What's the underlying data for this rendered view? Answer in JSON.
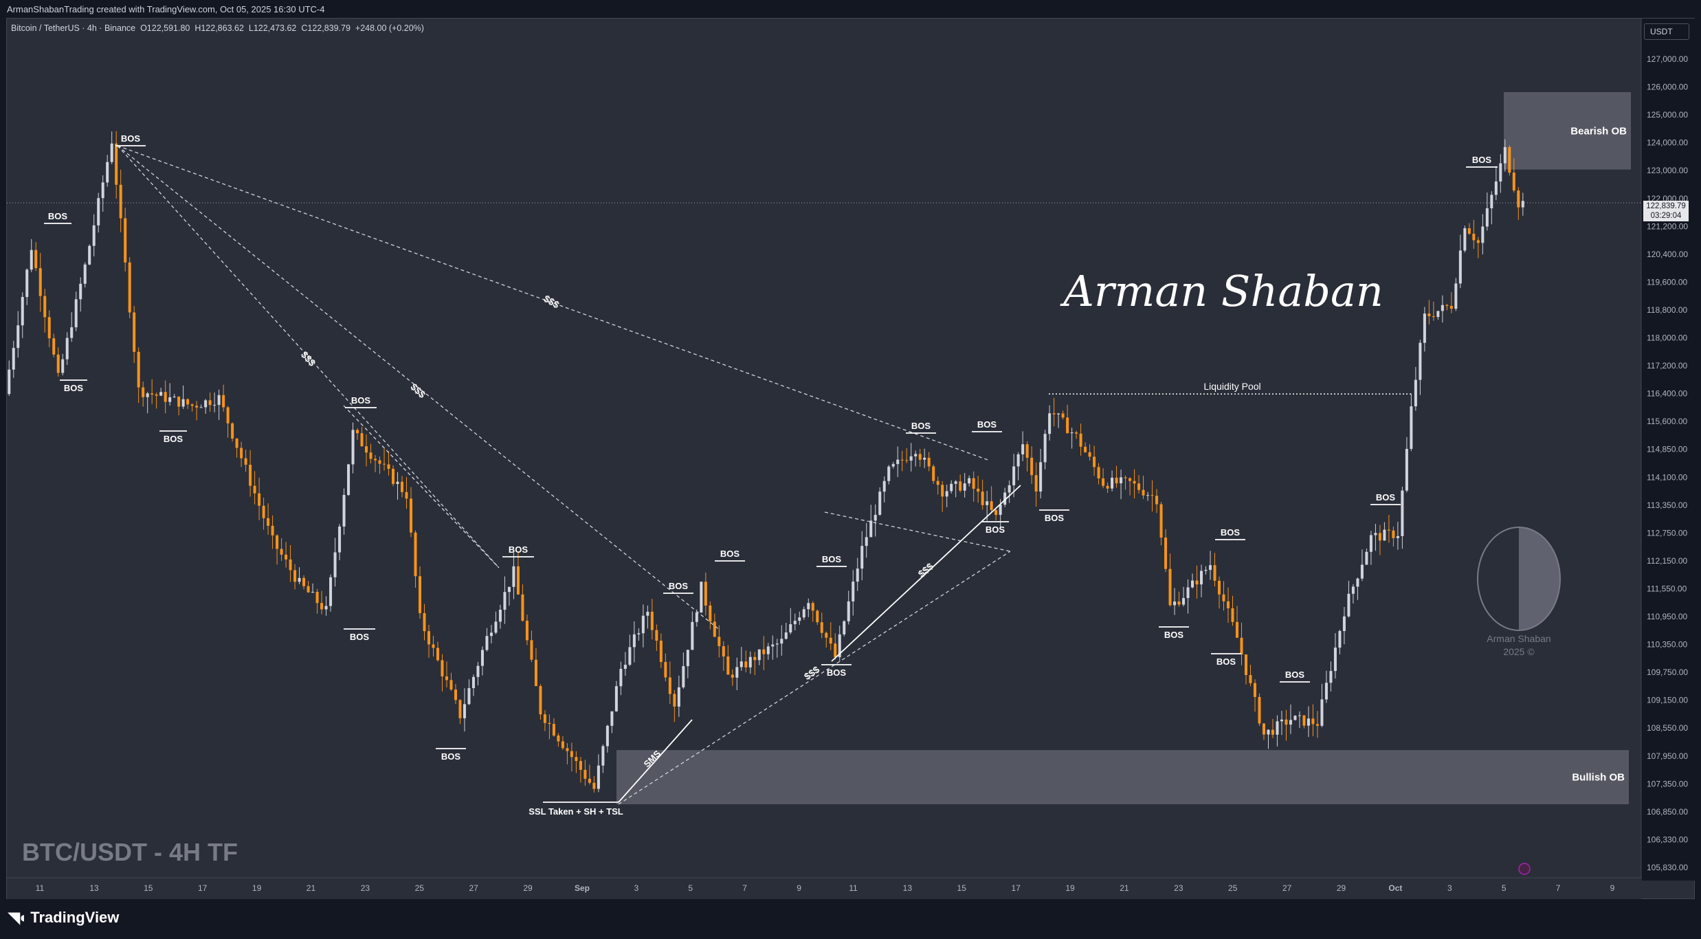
{
  "header": {
    "created_by": "ArmanShabanTrading created with TradingView.com, Oct 05, 2025 16:30 UTC-4"
  },
  "legend": {
    "symbol": "Bitcoin / TetherUS · 4h · Binance",
    "open": "O122,591.80",
    "high": "H122,863.62",
    "low": "L122,473.62",
    "close": "C122,839.79",
    "change": "+248.00 (+0.20%)"
  },
  "axis": {
    "currency": "USDT",
    "price_labels": [
      "127,000.00",
      "126,000.00",
      "125,000.00",
      "124,000.00",
      "123,000.00",
      "122,000.00",
      "121,200.00",
      "120,400.00",
      "119,600.00",
      "118,800.00",
      "118,000.00",
      "117,200.00",
      "116,400.00",
      "115,600.00",
      "114,850.00",
      "114,100.00",
      "113,350.00",
      "112,750.00",
      "112,150.00",
      "111,550.00",
      "110,950.00",
      "110,350.00",
      "109,750.00",
      "109,150.00",
      "108,550.00",
      "107,950.00",
      "107,350.00",
      "106,850.00",
      "106,330.00",
      "105,830.00"
    ],
    "time_labels": [
      "11",
      "13",
      "15",
      "17",
      "19",
      "21",
      "23",
      "25",
      "27",
      "29",
      "Sep",
      "3",
      "5",
      "7",
      "9",
      "11",
      "13",
      "15",
      "17",
      "19",
      "21",
      "23",
      "25",
      "27",
      "29",
      "Oct",
      "3",
      "5",
      "7",
      "9"
    ],
    "last_price": "122,839.79",
    "countdown": "03:29:04"
  },
  "annotations": {
    "bos": "BOS",
    "liquidity": "$$$",
    "sms": "SMS",
    "liquidity_pool": "Liquidity Pool",
    "bearish_ob": "Bearish OB",
    "bullish_ob": "Bullish OB",
    "ssl": "SSL Taken + SH + TSL",
    "watermark_title": "BTC/USDT - 4H TF",
    "signature": "Arman Shaban",
    "logo_name": "Arman Shaban",
    "logo_year": "2025 ©"
  },
  "footer": {
    "brand": "TradingView"
  },
  "colors": {
    "background": "#2a2e39",
    "bull": "#d1d4dc",
    "bear": "#f7931a",
    "zone": "#787b86"
  },
  "chart_data": {
    "type": "candlestick",
    "symbol": "BTCUSDT",
    "timeframe": "4h",
    "x_range": [
      "Aug 10, 2025",
      "Oct 10, 2025"
    ],
    "ylim": [
      105400,
      127600
    ],
    "swing_points": [
      {
        "date": "Aug 10",
        "price": 117900
      },
      {
        "date": "Aug 11",
        "price": 121700
      },
      {
        "date": "Aug 12",
        "price": 118300
      },
      {
        "date": "Aug 13",
        "price": 121200
      },
      {
        "date": "Aug 14",
        "price": 124450
      },
      {
        "date": "Aug 15",
        "price": 118000
      },
      {
        "date": "Aug 17",
        "price": 117600
      },
      {
        "date": "Aug 18",
        "price": 117800
      },
      {
        "date": "Aug 20",
        "price": 114100
      },
      {
        "date": "Aug 21",
        "price": 113000
      },
      {
        "date": "Aug 22",
        "price": 112300
      },
      {
        "date": "Aug 23",
        "price": 116900
      },
      {
        "date": "Aug 25",
        "price": 115300
      },
      {
        "date": "Aug 25",
        "price": 112100
      },
      {
        "date": "Aug 27",
        "price": 109600
      },
      {
        "date": "Aug 28",
        "price": 111600
      },
      {
        "date": "Aug 29",
        "price": 113300
      },
      {
        "date": "Aug 30",
        "price": 109700
      },
      {
        "date": "Aug 31",
        "price": 108700
      },
      {
        "date": "Sep 1",
        "price": 107700
      },
      {
        "date": "Sep 2",
        "price": 110800
      },
      {
        "date": "Sep 3",
        "price": 112300
      },
      {
        "date": "Sep 4",
        "price": 109900
      },
      {
        "date": "Sep 5",
        "price": 112900
      },
      {
        "date": "Sep 6",
        "price": 110600
      },
      {
        "date": "Sep 7",
        "price": 111100
      },
      {
        "date": "Sep 8",
        "price": 111500
      },
      {
        "date": "Sep 9",
        "price": 112600
      },
      {
        "date": "Sep 10",
        "price": 111100
      },
      {
        "date": "Sep 11",
        "price": 113900
      },
      {
        "date": "Sep 12",
        "price": 115900
      },
      {
        "date": "Sep 13",
        "price": 116500
      },
      {
        "date": "Sep 14",
        "price": 115400
      },
      {
        "date": "Sep 15",
        "price": 115600
      },
      {
        "date": "Sep 16",
        "price": 114700
      },
      {
        "date": "Sep 17",
        "price": 116600
      },
      {
        "date": "Sep 17",
        "price": 115500
      },
      {
        "date": "Sep 18",
        "price": 117500
      },
      {
        "date": "Sep 19",
        "price": 116800
      },
      {
        "date": "Sep 20",
        "price": 115600
      },
      {
        "date": "Sep 21",
        "price": 115600
      },
      {
        "date": "Sep 22",
        "price": 115200
      },
      {
        "date": "Sep 22",
        "price": 112400
      },
      {
        "date": "Sep 23",
        "price": 112700
      },
      {
        "date": "Sep 24",
        "price": 113500
      },
      {
        "date": "Sep 25",
        "price": 111600
      },
      {
        "date": "Sep 26",
        "price": 109100
      },
      {
        "date": "Sep 27",
        "price": 109500
      },
      {
        "date": "Sep 28",
        "price": 109400
      },
      {
        "date": "Sep 29",
        "price": 112300
      },
      {
        "date": "Sep 30",
        "price": 114200
      },
      {
        "date": "Oct 1",
        "price": 114300
      },
      {
        "date": "Oct 1",
        "price": 117500
      },
      {
        "date": "Oct 2",
        "price": 119900
      },
      {
        "date": "Oct 3",
        "price": 120200
      },
      {
        "date": "Oct 3",
        "price": 122300
      },
      {
        "date": "Oct 4",
        "price": 121800
      },
      {
        "date": "Oct 5",
        "price": 124200
      },
      {
        "date": "Oct 5",
        "price": 122840
      }
    ],
    "zones": [
      {
        "name": "Bearish OB",
        "from_date": "Oct 5",
        "to_date": "Oct 10",
        "low": 123700,
        "high": 125700
      },
      {
        "name": "Bullish OB",
        "from_date": "Sep 1",
        "to_date": "Oct 10",
        "low": 107300,
        "high": 108700
      }
    ],
    "levels": [
      {
        "name": "Liquidity Pool",
        "price": 117900,
        "from_date": "Sep 18",
        "to_date": "Oct 1"
      }
    ]
  }
}
